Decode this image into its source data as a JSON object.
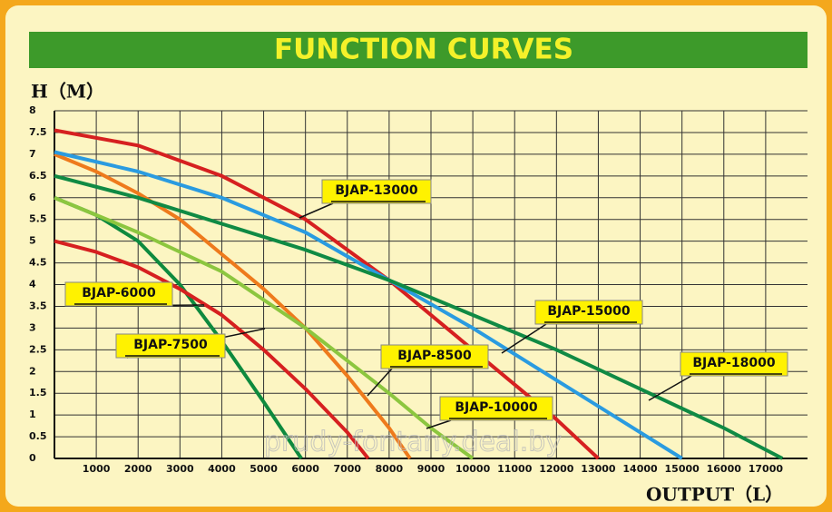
{
  "chart_data": {
    "type": "line",
    "title": "FUNCTION CURVES",
    "y_label": "H（M）",
    "x_label": "OUTPUT（L）",
    "watermark": "prudy-fontany.deal.by",
    "xlim": [
      0,
      18000
    ],
    "ylim": [
      0,
      8
    ],
    "xticks": [
      1000,
      2000,
      3000,
      4000,
      5000,
      6000,
      7000,
      8000,
      9000,
      10000,
      11000,
      12000,
      13000,
      14000,
      15000,
      16000,
      17000
    ],
    "yticks": [
      0,
      0.5,
      1,
      1.5,
      2,
      2.5,
      3,
      3.5,
      4,
      4.5,
      5,
      5.5,
      6,
      6.5,
      7,
      7.5,
      8
    ],
    "grid": true,
    "series": [
      {
        "name": "BJAP-6000",
        "color": "#0e8a3e",
        "x": [
          0,
          1000,
          2000,
          3000,
          4000,
          5000,
          5900
        ],
        "values": [
          6,
          5.6,
          5,
          4,
          2.7,
          1.3,
          0
        ]
      },
      {
        "name": "BJAP-7500",
        "color": "#d62020",
        "x": [
          0,
          1000,
          2000,
          3000,
          4000,
          5000,
          6000,
          7000,
          7500
        ],
        "values": [
          5,
          4.75,
          4.4,
          3.9,
          3.3,
          2.5,
          1.6,
          0.6,
          0
        ]
      },
      {
        "name": "BJAP-8500",
        "color": "#ee7a1c",
        "x": [
          0,
          1000,
          2000,
          3000,
          4000,
          5000,
          6000,
          7000,
          8000,
          8500
        ],
        "values": [
          7,
          6.6,
          6.1,
          5.5,
          4.7,
          3.9,
          3,
          1.9,
          0.7,
          0
        ]
      },
      {
        "name": "BJAP-10000",
        "color": "#8cc63f",
        "x": [
          0,
          2000,
          4000,
          6000,
          8000,
          9000,
          10000
        ],
        "values": [
          6,
          5.2,
          4.3,
          3,
          1.5,
          0.7,
          0
        ]
      },
      {
        "name": "BJAP-13000",
        "color": "#d62020",
        "x": [
          0,
          2000,
          4000,
          6000,
          8000,
          10000,
          12000,
          13000
        ],
        "values": [
          7.55,
          7.2,
          6.5,
          5.5,
          4.1,
          2.5,
          0.9,
          0
        ]
      },
      {
        "name": "BJAP-15000",
        "color": "#2a9be0",
        "x": [
          0,
          2000,
          4000,
          6000,
          8000,
          10000,
          12000,
          14000,
          15000
        ],
        "values": [
          7.05,
          6.6,
          6,
          5.2,
          4.1,
          3,
          1.8,
          0.6,
          0
        ]
      },
      {
        "name": "BJAP-18000",
        "color": "#108a44",
        "x": [
          0,
          2000,
          4000,
          6000,
          8000,
          10000,
          12000,
          14000,
          16000,
          17400
        ],
        "values": [
          6.5,
          6,
          5.4,
          4.8,
          4.1,
          3.3,
          2.5,
          1.6,
          0.7,
          0
        ]
      }
    ]
  }
}
